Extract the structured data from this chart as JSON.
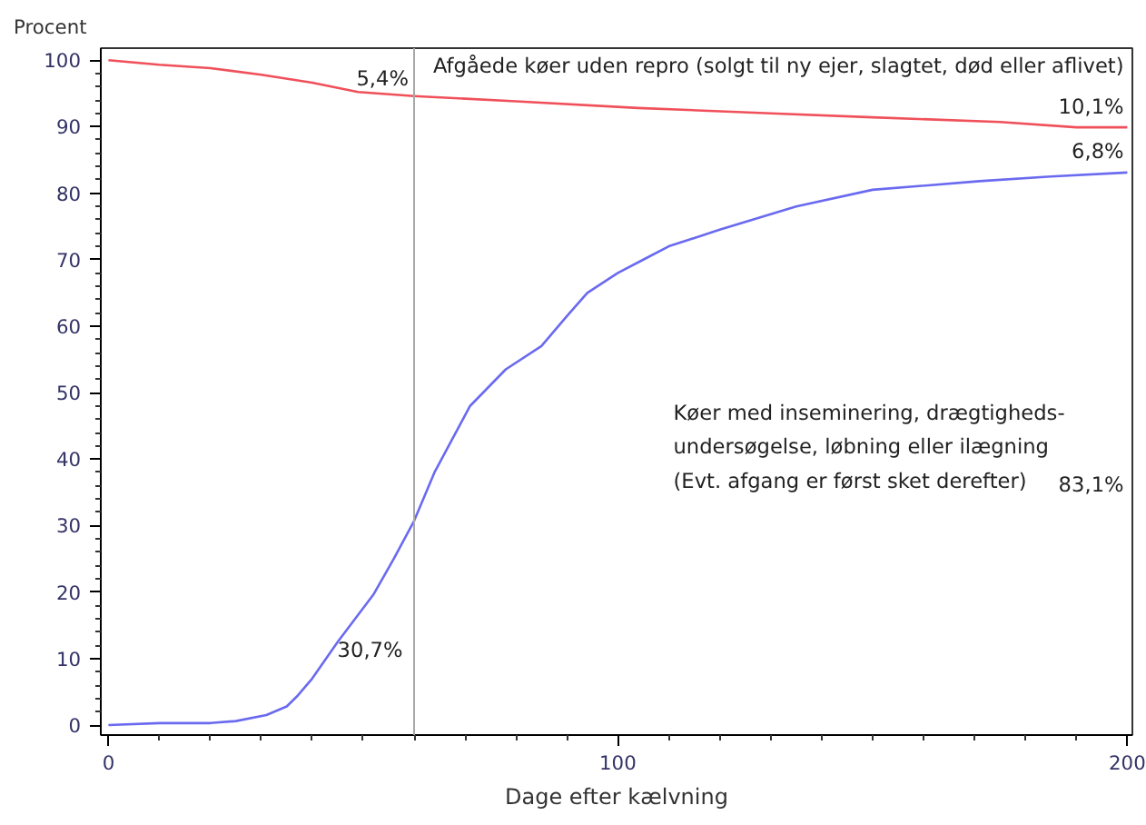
{
  "chart_data": {
    "type": "line",
    "xlabel": "Dage efter kælvning",
    "ylabel": "Procent",
    "xlim": [
      -1.5,
      201
    ],
    "ylim": [
      -1.5,
      101.8
    ],
    "xticks": [
      0,
      {
        "value": 10,
        "label": null
      },
      {
        "value": 20,
        "label": null
      },
      {
        "value": 30,
        "label": null
      },
      {
        "value": 40,
        "label": null
      },
      {
        "value": 50,
        "label": null
      },
      {
        "value": 60,
        "label": null
      },
      {
        "value": 70,
        "label": null
      },
      {
        "value": 80,
        "label": null
      },
      {
        "value": 90,
        "label": null
      },
      100,
      {
        "value": 110,
        "label": null
      },
      {
        "value": 120,
        "label": null
      },
      {
        "value": 130,
        "label": null
      },
      {
        "value": 140,
        "label": null
      },
      {
        "value": 150,
        "label": null
      },
      {
        "value": 160,
        "label": null
      },
      {
        "value": 170,
        "label": null
      },
      {
        "value": 180,
        "label": null
      },
      {
        "value": 190,
        "label": null
      },
      200
    ],
    "yticks": [
      0,
      {
        "value": 2,
        "label": null
      },
      {
        "value": 4,
        "label": null
      },
      {
        "value": 6,
        "label": null
      },
      {
        "value": 8,
        "label": null
      },
      10,
      {
        "value": 12,
        "label": null
      },
      {
        "value": 14,
        "label": null
      },
      {
        "value": 16,
        "label": null
      },
      {
        "value": 18,
        "label": null
      },
      20,
      {
        "value": 22,
        "label": null
      },
      {
        "value": 24,
        "label": null
      },
      {
        "value": 26,
        "label": null
      },
      {
        "value": 28,
        "label": null
      },
      30,
      {
        "value": 32,
        "label": null
      },
      {
        "value": 34,
        "label": null
      },
      {
        "value": 36,
        "label": null
      },
      {
        "value": 38,
        "label": null
      },
      40,
      {
        "value": 42,
        "label": null
      },
      {
        "value": 44,
        "label": null
      },
      {
        "value": 46,
        "label": null
      },
      {
        "value": 48,
        "label": null
      },
      50,
      {
        "value": 52,
        "label": null
      },
      {
        "value": 54,
        "label": null
      },
      {
        "value": 56,
        "label": null
      },
      {
        "value": 58,
        "label": null
      },
      60,
      {
        "value": 62,
        "label": null
      },
      {
        "value": 64,
        "label": null
      },
      {
        "value": 66,
        "label": null
      },
      {
        "value": 68,
        "label": null
      },
      70,
      {
        "value": 72,
        "label": null
      },
      {
        "value": 74,
        "label": null
      },
      {
        "value": 76,
        "label": null
      },
      {
        "value": 78,
        "label": null
      },
      80,
      {
        "value": 82,
        "label": null
      },
      {
        "value": 84,
        "label": null
      },
      {
        "value": 86,
        "label": null
      },
      {
        "value": 88,
        "label": null
      },
      90,
      {
        "value": 92,
        "label": null
      },
      {
        "value": 94,
        "label": null
      },
      {
        "value": 96,
        "label": null
      },
      {
        "value": 98,
        "label": null
      },
      100
    ],
    "grid": false,
    "marker": "none",
    "line_style": "solid",
    "series": [
      {
        "color": "#f0505a",
        "x": [
          0,
          10,
          20,
          30,
          40,
          49,
          60,
          80,
          104,
          130,
          150,
          175,
          190,
          200
        ],
        "values": [
          100,
          99.3,
          98.8,
          97.8,
          96.6,
          95.2,
          94.6,
          93.8,
          92.8,
          92.0,
          91.4,
          90.7,
          89.9,
          89.9
        ]
      },
      {
        "color": "#6a6af0",
        "x": [
          0,
          10,
          20,
          25,
          31,
          35,
          37,
          40,
          45,
          52,
          56,
          60,
          64,
          71,
          78,
          85,
          90,
          94,
          100,
          105,
          110,
          120,
          135,
          150,
          171,
          185,
          200
        ],
        "values": [
          0,
          0.3,
          0.3,
          0.6,
          1.5,
          2.8,
          4.3,
          7,
          12.5,
          19.6,
          25,
          30.7,
          38,
          48,
          53.5,
          57,
          61.5,
          65,
          68,
          70,
          72,
          74.5,
          78,
          80.5,
          81.8,
          82.5,
          83.1
        ]
      }
    ],
    "ref_lines": [
      {
        "axis": "x",
        "value": 60,
        "color": "#a8a8a8"
      }
    ],
    "annotations": [
      {
        "text": "5,4%",
        "x": 60,
        "y": 94.6
      },
      "Afgåede køer uden repro (solgt til ny ejer, slagtet, død eller aflivet)",
      "10,1%",
      "6,8%",
      "Køer med inseminering, drægtigheds-\nundersøgelse, løbning eller ilægning\n(Evt. afgang er først sket derefter)",
      "83,1%",
      "30,7%"
    ]
  }
}
